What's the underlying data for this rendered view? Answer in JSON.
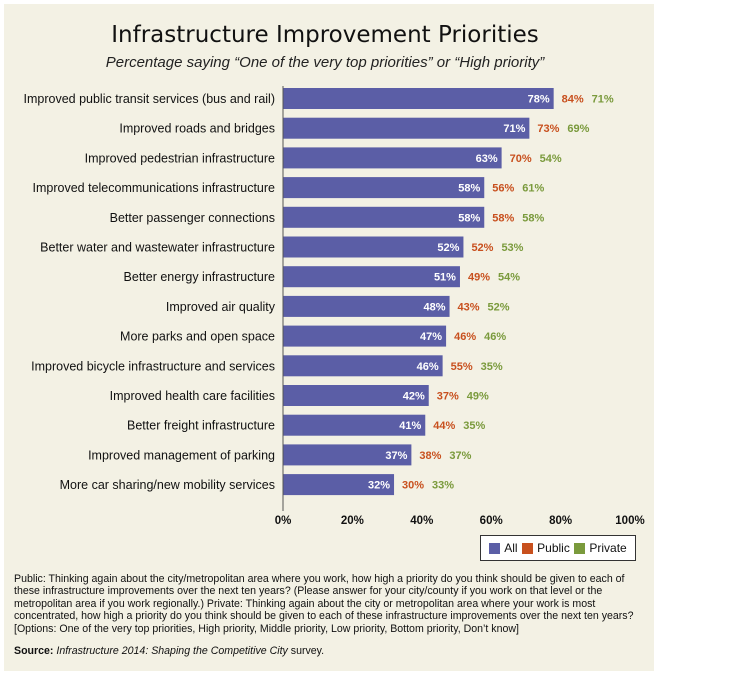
{
  "chart_data": {
    "type": "bar",
    "orientation": "horizontal",
    "title": "Infrastructure Improvement Priorities",
    "subtitle": "Percentage saying “One of the very top priorities” or “High priority”",
    "categories": [
      "Improved public transit services (bus and rail)",
      "Improved roads and bridges",
      "Improved pedestrian infrastructure",
      "Improved telecommunications infrastructure",
      "Better passenger connections",
      "Better water and wastewater infrastructure",
      "Better energy infrastructure",
      "Improved air quality",
      "More parks and open space",
      "Improved bicycle infrastructure and services",
      "Improved health care facilities",
      "Better freight infrastructure",
      "Improved management of parking",
      "More car sharing/new mobility services"
    ],
    "series": [
      {
        "name": "All",
        "values": [
          78,
          71,
          63,
          58,
          58,
          52,
          51,
          48,
          47,
          46,
          42,
          41,
          37,
          32
        ],
        "color": "#5b5ea6"
      },
      {
        "name": "Public",
        "values": [
          84,
          73,
          70,
          56,
          58,
          52,
          49,
          43,
          46,
          55,
          37,
          44,
          38,
          30
        ],
        "color": "#c8501e"
      },
      {
        "name": "Private",
        "values": [
          71,
          69,
          54,
          61,
          58,
          53,
          54,
          52,
          46,
          35,
          49,
          35,
          37,
          33
        ],
        "color": "#7a9a3c"
      }
    ],
    "xlim": [
      0,
      100
    ],
    "xticks": [
      "0%",
      "20%",
      "40%",
      "60%",
      "80%",
      "100%"
    ],
    "legend_position": "bottom-right",
    "grid": false
  },
  "notes": {
    "text": "Public: Thinking again about the city/metropolitan area where you work, how high a priority do you think should be given to each of these infrastructure improvements over the next ten years? (Please answer for your city/county if you work on that level or the metropolitan area if you work regionally.) Private: Thinking again about the city or metropolitan area where your work is most concentrated, how high a priority do you think should be given to each of these infrastructure improvements over the next ten years? [Options: One of the very top priorities, High priority, Middle priority, Low priority, Bottom priority, Don’t know]",
    "source_label": "Source:",
    "source_text": "Infrastructure 2014: Shaping the Competitive City",
    "source_suffix": " survey."
  }
}
